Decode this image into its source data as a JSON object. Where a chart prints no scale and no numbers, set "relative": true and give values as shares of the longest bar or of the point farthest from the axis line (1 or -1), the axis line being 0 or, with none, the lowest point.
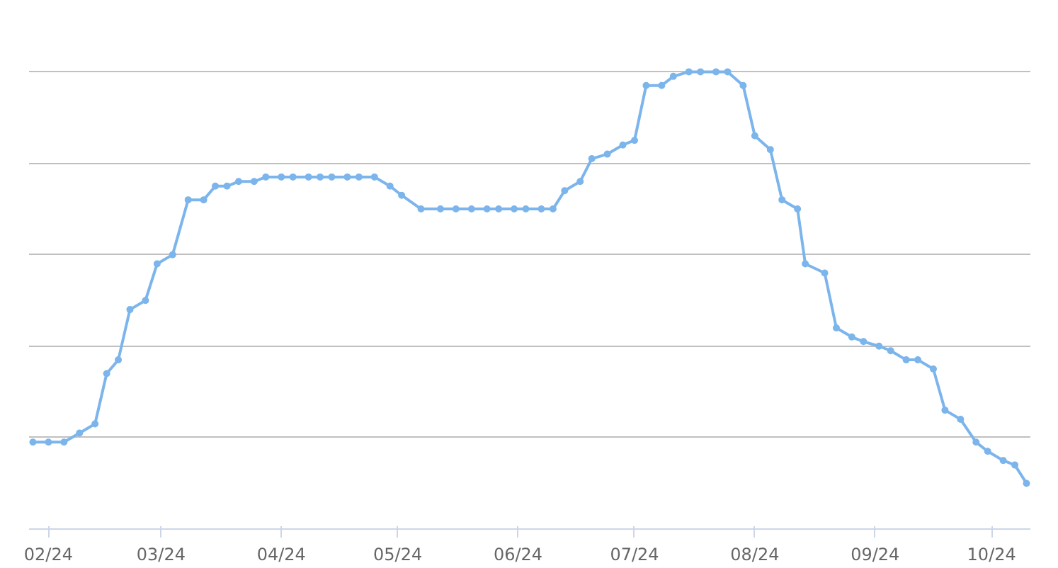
{
  "chart_data": {
    "type": "line",
    "relative": true,
    "grid": "y",
    "marker": "circle",
    "line_style": "solid",
    "xlim": [
      "2024-01-27",
      "2024-10-11"
    ],
    "xticks": [
      {
        "value": "2024-02-01",
        "label": "02/24"
      },
      {
        "value": "2024-03-01",
        "label": "03/24"
      },
      {
        "value": "2024-04-01",
        "label": "04/24"
      },
      {
        "value": "2024-05-01",
        "label": "05/24"
      },
      {
        "value": "2024-06-01",
        "label": "06/24"
      },
      {
        "value": "2024-07-01",
        "label": "07/24"
      },
      {
        "value": "2024-08-01",
        "label": "08/24"
      },
      {
        "value": "2024-09-01",
        "label": "09/24"
      },
      {
        "value": "2024-10-01",
        "label": "10/24"
      }
    ],
    "x": [
      "2024-01-28",
      "2024-02-01",
      "2024-02-05",
      "2024-02-09",
      "2024-02-13",
      "2024-02-16",
      "2024-02-19",
      "2024-02-22",
      "2024-02-26",
      "2024-02-29",
      "2024-03-04",
      "2024-03-08",
      "2024-03-12",
      "2024-03-15",
      "2024-03-18",
      "2024-03-21",
      "2024-03-25",
      "2024-03-28",
      "2024-04-01",
      "2024-04-04",
      "2024-04-08",
      "2024-04-11",
      "2024-04-14",
      "2024-04-18",
      "2024-04-21",
      "2024-04-25",
      "2024-04-29",
      "2024-05-02",
      "2024-05-07",
      "2024-05-12",
      "2024-05-16",
      "2024-05-20",
      "2024-05-24",
      "2024-05-27",
      "2024-05-31",
      "2024-06-03",
      "2024-06-07",
      "2024-06-10",
      "2024-06-13",
      "2024-06-17",
      "2024-06-20",
      "2024-06-24",
      "2024-06-28",
      "2024-07-01",
      "2024-07-04",
      "2024-07-08",
      "2024-07-11",
      "2024-07-15",
      "2024-07-18",
      "2024-07-22",
      "2024-07-25",
      "2024-07-29",
      "2024-08-01",
      "2024-08-05",
      "2024-08-08",
      "2024-08-12",
      "2024-08-14",
      "2024-08-19",
      "2024-08-22",
      "2024-08-26",
      "2024-08-29",
      "2024-09-02",
      "2024-09-05",
      "2024-09-09",
      "2024-09-12",
      "2024-09-16",
      "2024-09-19",
      "2024-09-23",
      "2024-09-27",
      "2024-09-30",
      "2024-10-04",
      "2024-10-07",
      "2024-10-10"
    ],
    "series": [
      {
        "color": "#7cb5ec",
        "values": [
          0.19,
          0.19,
          0.19,
          0.21,
          0.23,
          0.34,
          0.37,
          0.48,
          0.5,
          0.58,
          0.6,
          0.72,
          0.72,
          0.75,
          0.75,
          0.76,
          0.76,
          0.77,
          0.77,
          0.77,
          0.77,
          0.77,
          0.77,
          0.77,
          0.77,
          0.77,
          0.75,
          0.73,
          0.7,
          0.7,
          0.7,
          0.7,
          0.7,
          0.7,
          0.7,
          0.7,
          0.7,
          0.7,
          0.74,
          0.76,
          0.81,
          0.82,
          0.84,
          0.85,
          0.97,
          0.97,
          0.99,
          1,
          1,
          1,
          1,
          0.97,
          0.86,
          0.83,
          0.72,
          0.7,
          0.58,
          0.56,
          0.44,
          0.42,
          0.41,
          0.4,
          0.39,
          0.37,
          0.37,
          0.35,
          0.26,
          0.24,
          0.19,
          0.17,
          0.15,
          0.14,
          0.1
        ]
      }
    ]
  }
}
